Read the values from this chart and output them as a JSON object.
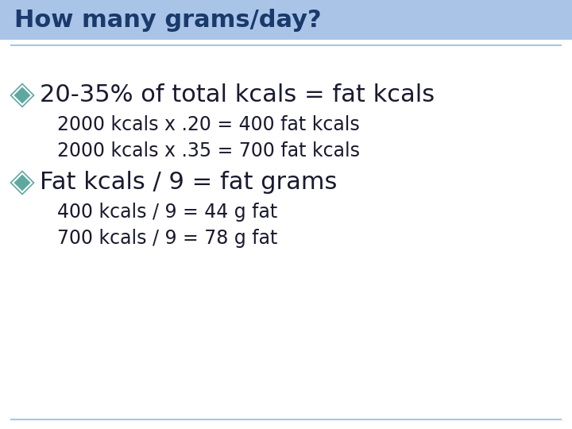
{
  "title": "How many grams/day?",
  "title_bg_color": "#aac4e8",
  "title_text_color": "#1a3a6b",
  "bg_color": "#ffffff",
  "divider_color": "#aac4e8",
  "bullet_color": "#5fa8a0",
  "bullet1_text": "20-35% of total kcals = fat kcals",
  "bullet1_sub1": "2000 kcals x .20 = 400 fat kcals",
  "bullet1_sub2": "2000 kcals x .35 = 700 fat kcals",
  "bullet2_text": "Fat kcals / 9 = fat grams",
  "bullet2_sub1": "400 kcals / 9 = 44 g fat",
  "bullet2_sub2": "700 kcals / 9 = 78 g fat",
  "bullet_fontsize": 22,
  "sub_fontsize": 17,
  "title_fontsize": 22,
  "main_text_color": "#1a1a2e",
  "sub_text_color": "#1a1a2e"
}
